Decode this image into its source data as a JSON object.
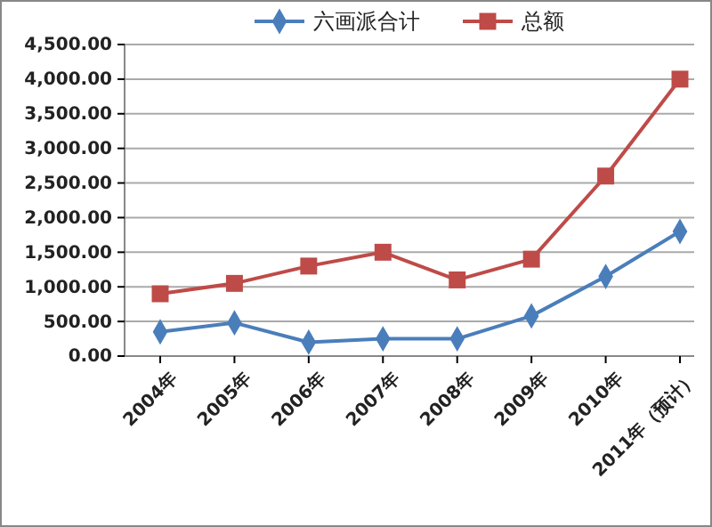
{
  "chart_data": {
    "type": "line",
    "categories": [
      "2004年",
      "2005年",
      "2006年",
      "2007年",
      "2008年",
      "2009年",
      "2010年",
      "2011年（预计）"
    ],
    "series": [
      {
        "name": "六画派合计",
        "color": "#4a7ebb",
        "marker": "diamond",
        "values": [
          350,
          480,
          200,
          250,
          250,
          580,
          1150,
          1800
        ]
      },
      {
        "name": "总额",
        "color": "#be4b48",
        "marker": "square",
        "values": [
          900,
          1050,
          1300,
          1500,
          1100,
          1400,
          2600,
          4000
        ]
      }
    ],
    "ylim": [
      0,
      4500
    ],
    "yticks": [
      {
        "value": 0,
        "label": "0.00"
      },
      {
        "value": 500,
        "label": "500.00"
      },
      {
        "value": 1000,
        "label": "1,000.00"
      },
      {
        "value": 1500,
        "label": "1,500.00"
      },
      {
        "value": 2000,
        "label": "2,000.00"
      },
      {
        "value": 2500,
        "label": "2,500.00"
      },
      {
        "value": 3000,
        "label": "3,000.00"
      },
      {
        "value": 3500,
        "label": "3,500.00"
      },
      {
        "value": 4000,
        "label": "4,000.00"
      },
      {
        "value": 4500,
        "label": "4,500.00"
      }
    ],
    "grid": "y",
    "legend": "top"
  }
}
